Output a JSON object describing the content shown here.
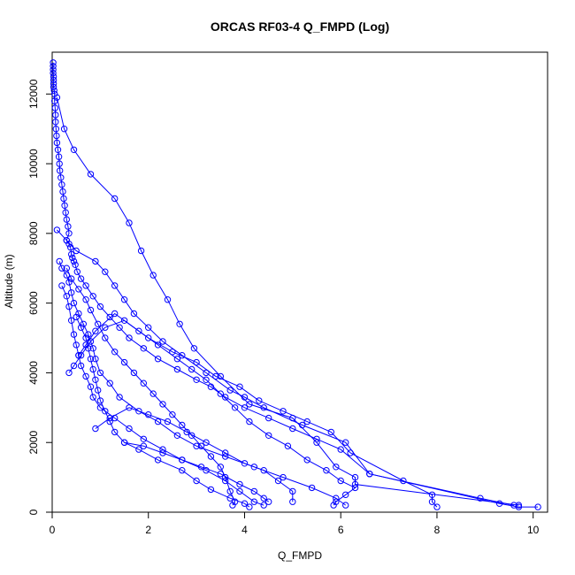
{
  "colors": {
    "series": "#0000ff",
    "axis": "#000000",
    "background": "#ffffff"
  },
  "chart_data": {
    "type": "line",
    "title": "ORCAS RF03-4 Q_FMPD (Log)",
    "xlabel": "Q_FMPD",
    "ylabel": "Altitude (m)",
    "xlim": [
      0,
      10.3
    ],
    "ylim": [
      0,
      13200
    ],
    "x_ticks": [
      0,
      2,
      4,
      6,
      8,
      10
    ],
    "y_ticks": [
      0,
      2000,
      4000,
      6000,
      8000,
      10000,
      12000
    ],
    "grid": false,
    "markers": "open-circle",
    "series": [
      {
        "segments": [
          [
            [
              0.02,
              12900
            ],
            [
              0.02,
              12800
            ],
            [
              0.02,
              12700
            ],
            [
              0.02,
              12600
            ],
            [
              0.03,
              12500
            ],
            [
              0.03,
              12400
            ],
            [
              0.03,
              12300
            ],
            [
              0.03,
              12200
            ],
            [
              0.04,
              12100
            ],
            [
              0.05,
              12000
            ],
            [
              0.05,
              11800
            ],
            [
              0.06,
              11600
            ],
            [
              0.07,
              11400
            ],
            [
              0.07,
              11200
            ],
            [
              0.08,
              11000
            ],
            [
              0.09,
              10800
            ],
            [
              0.1,
              10600
            ],
            [
              0.12,
              10400
            ],
            [
              0.14,
              10200
            ],
            [
              0.15,
              10000
            ],
            [
              0.16,
              9800
            ],
            [
              0.18,
              9600
            ],
            [
              0.2,
              9400
            ],
            [
              0.22,
              9200
            ],
            [
              0.24,
              9000
            ],
            [
              0.26,
              8800
            ],
            [
              0.28,
              8600
            ],
            [
              0.3,
              8400
            ],
            [
              0.33,
              8200
            ],
            [
              0.35,
              8000
            ],
            [
              0.3,
              7800
            ],
            [
              0.35,
              7700
            ],
            [
              0.38,
              7600
            ],
            [
              0.4,
              7400
            ],
            [
              0.42,
              7300
            ],
            [
              0.45,
              7200
            ],
            [
              0.48,
              7100
            ],
            [
              0.52,
              6900
            ],
            [
              0.6,
              6700
            ],
            [
              0.7,
              6500
            ],
            [
              0.85,
              6200
            ],
            [
              1.0,
              5900
            ],
            [
              1.2,
              5600
            ],
            [
              1.4,
              5300
            ],
            [
              1.6,
              5000
            ],
            [
              1.9,
              4700
            ],
            [
              2.2,
              4400
            ],
            [
              2.6,
              4100
            ],
            [
              3.0,
              3800
            ],
            [
              3.3,
              3600
            ],
            [
              3.6,
              3300
            ],
            [
              4.0,
              3000
            ],
            [
              4.5,
              2700
            ],
            [
              5.0,
              2400
            ],
            [
              5.5,
              2100
            ],
            [
              6.0,
              1800
            ],
            [
              6.6,
              1100
            ],
            [
              9.3,
              250
            ],
            [
              9.7,
              150
            ],
            [
              10.1,
              150
            ]
          ],
          [
            [
              0.1,
              11900
            ],
            [
              0.25,
              11000
            ],
            [
              0.45,
              10400
            ],
            [
              0.8,
              9700
            ],
            [
              1.3,
              9000
            ],
            [
              1.6,
              8300
            ],
            [
              1.85,
              7500
            ],
            [
              2.1,
              6800
            ],
            [
              2.4,
              6100
            ],
            [
              2.65,
              5400
            ],
            [
              2.95,
              4700
            ],
            [
              3.5,
              3900
            ],
            [
              4.1,
              3100
            ],
            [
              5.0,
              2700
            ],
            [
              5.5,
              2000
            ],
            [
              5.9,
              1300
            ],
            [
              6.3,
              1000
            ],
            [
              6.3,
              800
            ],
            [
              9.7,
              200
            ]
          ],
          [
            [
              0.1,
              8100
            ],
            [
              0.3,
              7800
            ],
            [
              0.5,
              7500
            ],
            [
              0.9,
              7200
            ],
            [
              1.1,
              6900
            ],
            [
              1.3,
              6500
            ],
            [
              1.5,
              6100
            ],
            [
              1.7,
              5700
            ],
            [
              2.0,
              5300
            ],
            [
              2.3,
              4900
            ],
            [
              2.7,
              4500
            ],
            [
              3.2,
              4000
            ],
            [
              3.7,
              3500
            ],
            [
              4.0,
              3300
            ],
            [
              4.4,
              3000
            ],
            [
              5.2,
              2500
            ],
            [
              6.1,
              2000
            ],
            [
              6.6,
              1100
            ],
            [
              8.9,
              400
            ],
            [
              9.6,
              200
            ]
          ],
          [
            [
              0.15,
              7200
            ],
            [
              0.2,
              7000
            ],
            [
              0.3,
              6800
            ],
            [
              0.35,
              6600
            ],
            [
              0.4,
              6300
            ],
            [
              0.45,
              6000
            ],
            [
              0.55,
              5700
            ],
            [
              0.65,
              5400
            ],
            [
              0.75,
              5100
            ],
            [
              0.85,
              4700
            ],
            [
              0.9,
              4400
            ],
            [
              1.0,
              4000
            ],
            [
              1.2,
              3700
            ],
            [
              1.4,
              3300
            ],
            [
              1.8,
              2900
            ],
            [
              2.2,
              2600
            ],
            [
              2.6,
              2200
            ],
            [
              3.0,
              1900
            ],
            [
              3.6,
              1600
            ],
            [
              4.2,
              1300
            ],
            [
              4.8,
              1000
            ],
            [
              5.4,
              700
            ],
            [
              5.9,
              400
            ],
            [
              6.1,
              200
            ]
          ],
          [
            [
              0.2,
              6500
            ],
            [
              0.3,
              6200
            ],
            [
              0.35,
              5900
            ],
            [
              0.4,
              5500
            ],
            [
              0.45,
              5100
            ],
            [
              0.5,
              4800
            ],
            [
              0.55,
              4500
            ],
            [
              0.6,
              4200
            ],
            [
              0.7,
              3900
            ],
            [
              0.8,
              3600
            ],
            [
              0.85,
              3300
            ],
            [
              1.0,
              3000
            ],
            [
              1.3,
              2700
            ],
            [
              1.6,
              2400
            ],
            [
              1.9,
              2100
            ],
            [
              2.3,
              1800
            ],
            [
              2.7,
              1500
            ],
            [
              3.2,
              1200
            ],
            [
              3.6,
              900
            ],
            [
              3.9,
              600
            ],
            [
              4.2,
              300
            ],
            [
              4.4,
              200
            ]
          ],
          [
            [
              0.3,
              7000
            ],
            [
              0.4,
              6700
            ],
            [
              0.55,
              6400
            ],
            [
              0.7,
              6100
            ],
            [
              0.8,
              5800
            ],
            [
              0.95,
              5400
            ],
            [
              1.1,
              5000
            ],
            [
              1.3,
              4600
            ],
            [
              1.5,
              4300
            ],
            [
              1.7,
              4000
            ],
            [
              1.9,
              3700
            ],
            [
              2.1,
              3400
            ],
            [
              2.3,
              3100
            ],
            [
              2.5,
              2800
            ],
            [
              2.7,
              2500
            ],
            [
              2.9,
              2200
            ],
            [
              3.1,
              1900
            ],
            [
              3.3,
              1600
            ],
            [
              3.5,
              1300
            ],
            [
              3.6,
              1000
            ],
            [
              3.7,
              600
            ],
            [
              3.8,
              300
            ],
            [
              3.75,
              200
            ]
          ],
          [
            [
              0.5,
              5600
            ],
            [
              0.6,
              5300
            ],
            [
              0.7,
              5000
            ],
            [
              0.75,
              4700
            ],
            [
              0.8,
              4400
            ],
            [
              0.85,
              4100
            ],
            [
              0.9,
              3800
            ],
            [
              0.95,
              3500
            ],
            [
              1.0,
              3200
            ],
            [
              1.1,
              2900
            ],
            [
              1.2,
              2600
            ],
            [
              1.3,
              2300
            ],
            [
              1.5,
              2000
            ],
            [
              1.8,
              1800
            ],
            [
              2.2,
              1500
            ],
            [
              2.7,
              1200
            ],
            [
              3.0,
              900
            ],
            [
              3.3,
              650
            ],
            [
              3.7,
              400
            ],
            [
              4.0,
              250
            ],
            [
              4.1,
              150
            ]
          ],
          [
            [
              0.35,
              4000
            ],
            [
              0.45,
              4200
            ],
            [
              0.6,
              4500
            ],
            [
              0.8,
              4900
            ],
            [
              1.1,
              5300
            ],
            [
              1.5,
              5500
            ],
            [
              2.0,
              5000
            ],
            [
              2.5,
              4600
            ],
            [
              3.0,
              4300
            ],
            [
              3.4,
              3900
            ],
            [
              3.9,
              3600
            ],
            [
              4.3,
              3200
            ],
            [
              4.8,
              2900
            ],
            [
              5.3,
              2600
            ],
            [
              5.8,
              2300
            ],
            [
              6.2,
              1700
            ],
            [
              7.3,
              900
            ],
            [
              7.9,
              500
            ],
            [
              7.9,
              300
            ],
            [
              8.0,
              150
            ]
          ],
          [
            [
              0.55,
              4500
            ],
            [
              0.7,
              4800
            ],
            [
              0.9,
              5200
            ],
            [
              1.3,
              5700
            ],
            [
              1.8,
              5200
            ],
            [
              2.2,
              4800
            ],
            [
              2.6,
              4400
            ],
            [
              2.9,
              4100
            ],
            [
              3.2,
              3800
            ],
            [
              3.5,
              3400
            ],
            [
              3.8,
              3000
            ],
            [
              4.1,
              2600
            ],
            [
              4.5,
              2200
            ],
            [
              4.9,
              1900
            ],
            [
              5.3,
              1500
            ],
            [
              5.7,
              1200
            ],
            [
              6.0,
              900
            ],
            [
              6.3,
              700
            ],
            [
              6.1,
              500
            ],
            [
              5.9,
              300
            ],
            [
              5.85,
              200
            ]
          ],
          [
            [
              0.9,
              2400
            ],
            [
              1.2,
              2700
            ],
            [
              1.6,
              3000
            ],
            [
              2.0,
              2800
            ],
            [
              2.4,
              2600
            ],
            [
              2.8,
              2300
            ],
            [
              3.2,
              2000
            ],
            [
              3.6,
              1700
            ],
            [
              4.0,
              1400
            ],
            [
              4.4,
              1200
            ],
            [
              4.7,
              900
            ],
            [
              5.0,
              600
            ],
            [
              5.0,
              300
            ]
          ],
          [
            [
              1.5,
              2000
            ],
            [
              1.9,
              1900
            ],
            [
              2.3,
              1700
            ],
            [
              2.7,
              1500
            ],
            [
              3.1,
              1300
            ],
            [
              3.5,
              1100
            ],
            [
              3.9,
              800
            ],
            [
              4.2,
              600
            ],
            [
              4.4,
              400
            ],
            [
              4.5,
              300
            ]
          ]
        ]
      }
    ]
  }
}
